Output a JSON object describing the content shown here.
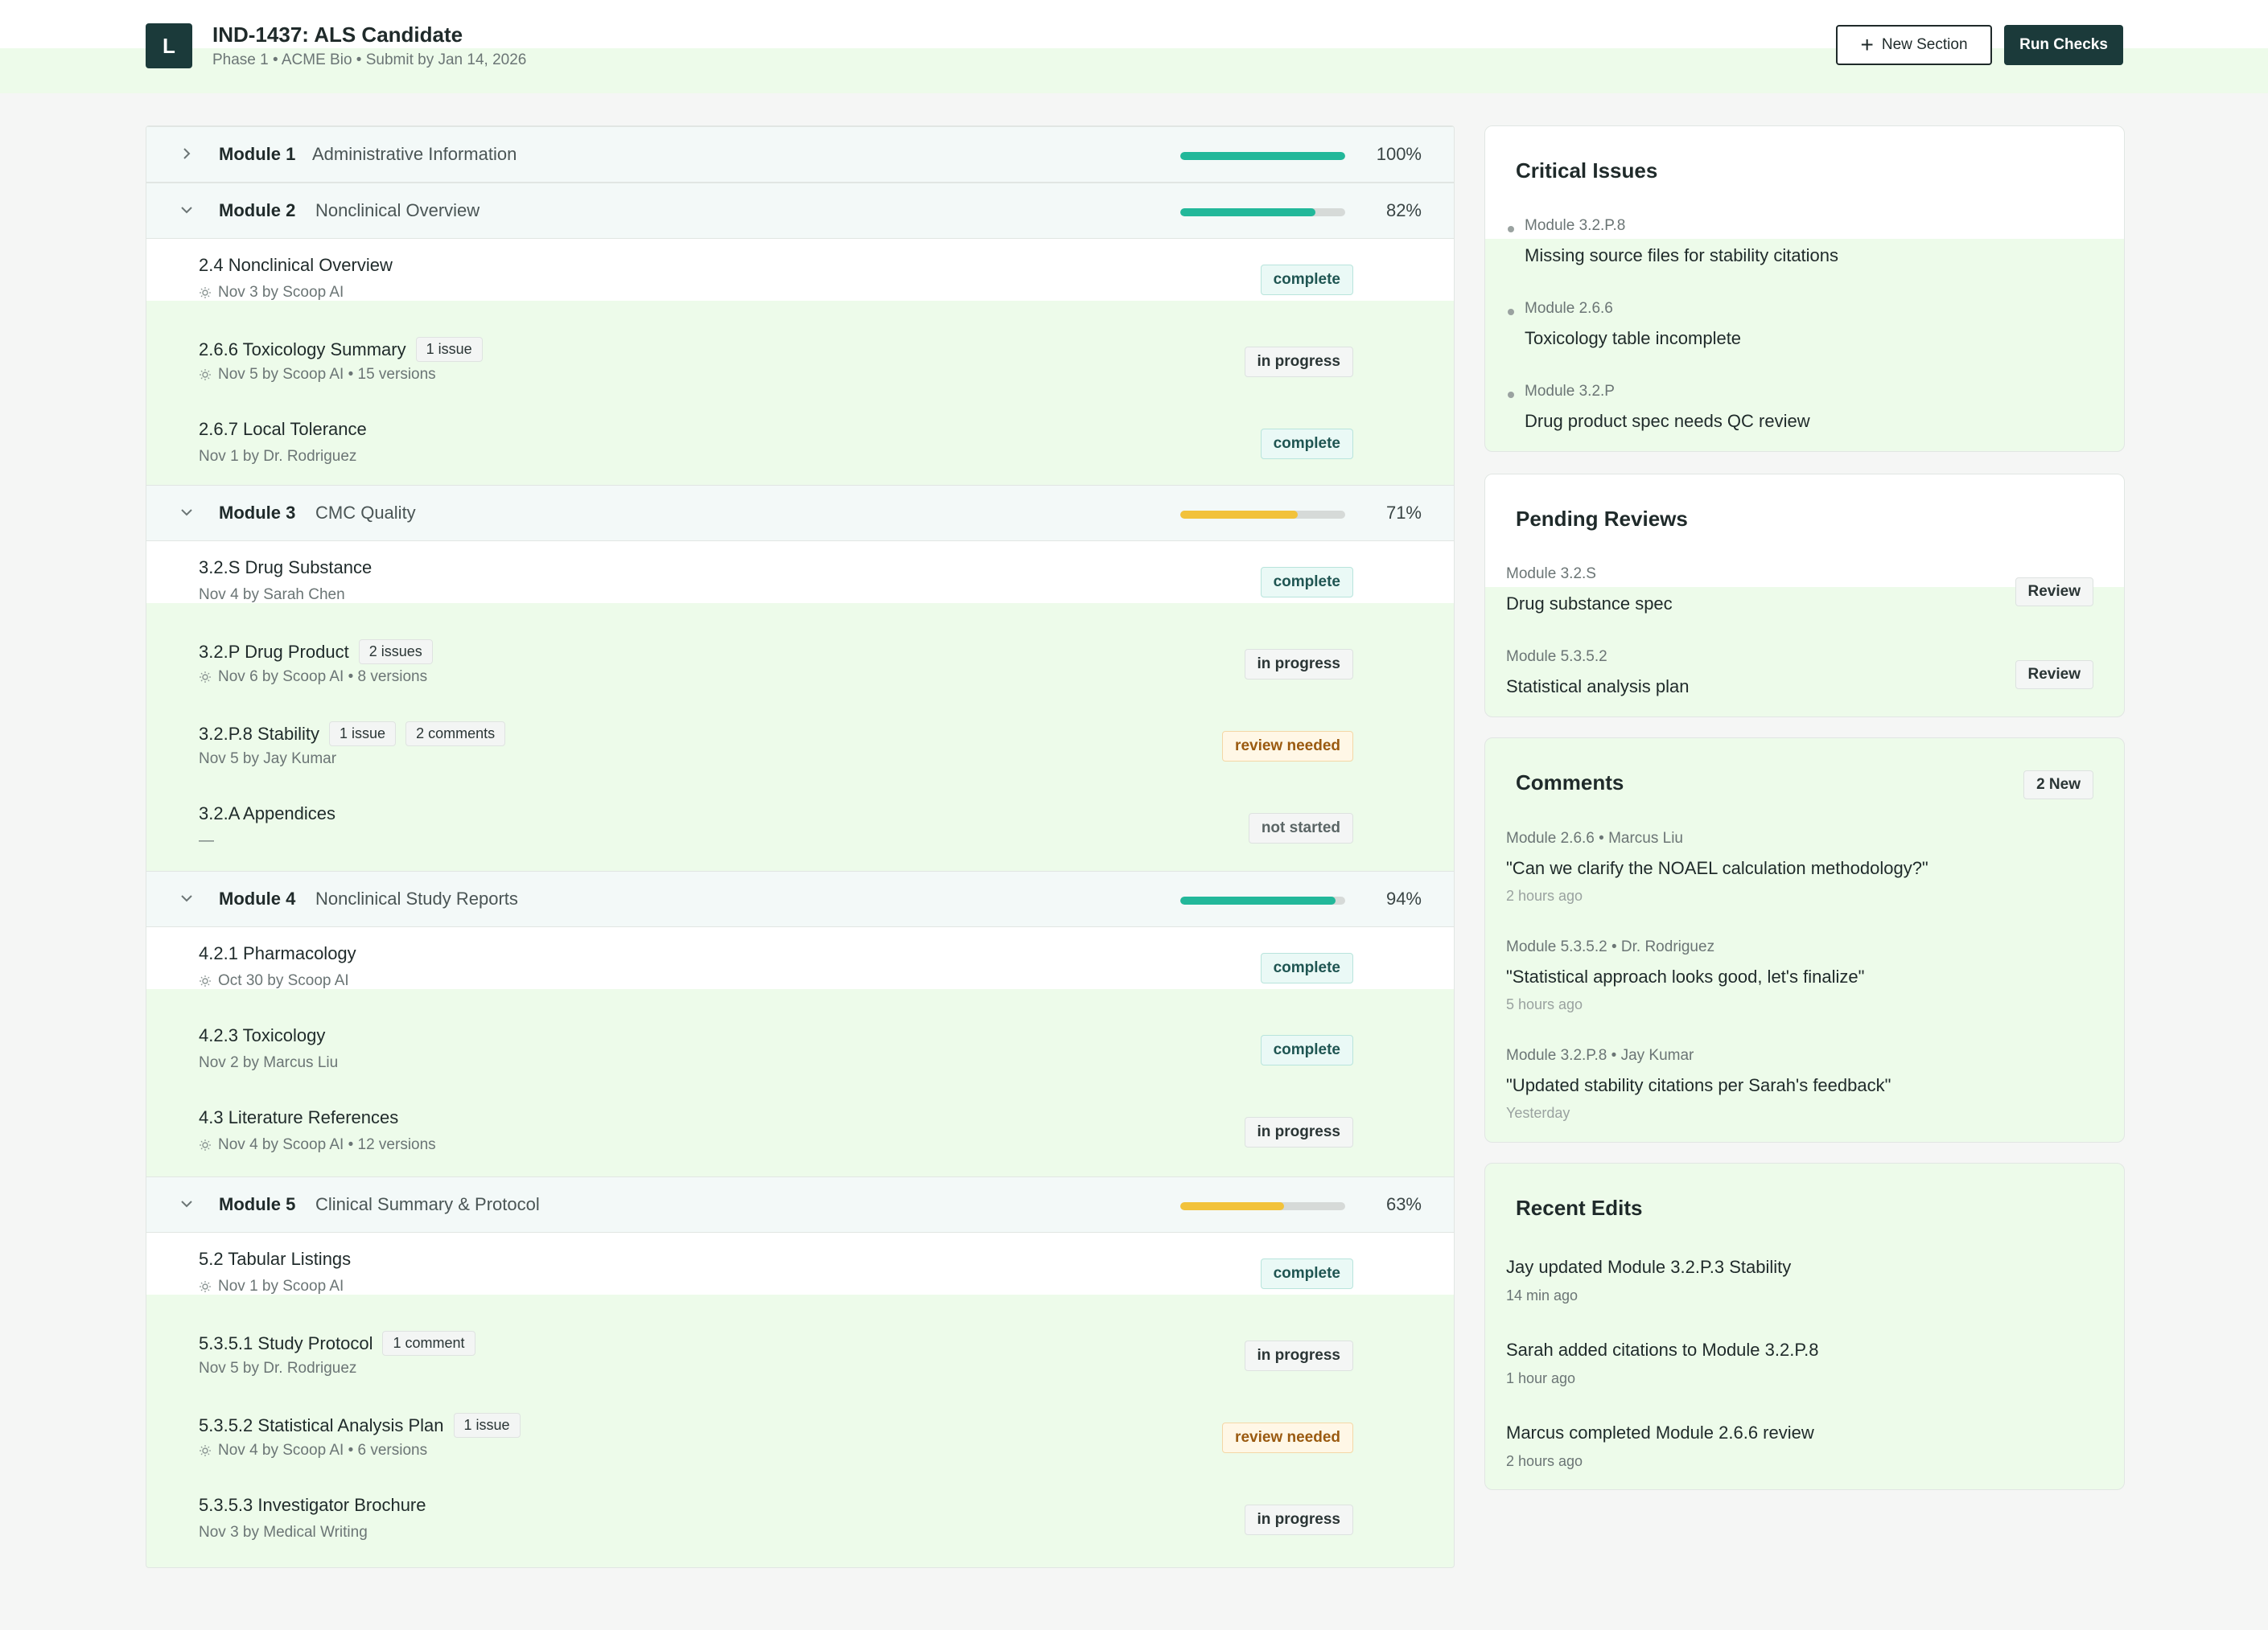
{
  "header": {
    "logo_letter": "L",
    "title": "IND-1437: ALS Candidate",
    "subtitle": "Phase 1 • ACME Bio • Submit by Jan 14, 2026",
    "new_section_label": "New Section",
    "run_checks_label": "Run Checks"
  },
  "modules": [
    {
      "name": "Module 1",
      "desc": "Administrative Information",
      "progress_pct": 100,
      "progress_label": "100%",
      "bar_color": "#22b89a",
      "expanded": false
    },
    {
      "name": "Module 2",
      "desc": "Nonclinical Overview",
      "progress_pct": 82,
      "progress_label": "82%",
      "bar_color": "#22b89a",
      "expanded": true
    },
    {
      "name": "Module 3",
      "desc": "CMC Quality",
      "progress_pct": 71,
      "progress_label": "71%",
      "bar_color": "#f2c23a",
      "expanded": true
    },
    {
      "name": "Module 4",
      "desc": "Nonclinical Study Reports",
      "progress_pct": 94,
      "progress_label": "94%",
      "bar_color": "#22b89a",
      "expanded": true
    },
    {
      "name": "Module 5",
      "desc": "Clinical Summary & Protocol",
      "progress_pct": 63,
      "progress_label": "63%",
      "bar_color": "#f2c23a",
      "expanded": true
    }
  ],
  "items": [
    {
      "title": "2.4 Nonclinical Overview",
      "meta": "Nov 3 by Scoop AI",
      "ai": true,
      "chips": [],
      "status": "complete"
    },
    {
      "title": "2.6.6 Toxicology Summary",
      "meta": "Nov 5 by Scoop AI • 15 versions",
      "ai": true,
      "chips": [
        "1 issue"
      ],
      "status": "in progress"
    },
    {
      "title": "2.6.7 Local Tolerance",
      "meta": "Nov 1 by Dr. Rodriguez",
      "ai": false,
      "chips": [],
      "status": "complete"
    },
    {
      "title": "3.2.S Drug Substance",
      "meta": "Nov 4 by Sarah Chen",
      "ai": false,
      "chips": [],
      "status": "complete"
    },
    {
      "title": "3.2.P Drug Product",
      "meta": "Nov 6 by Scoop AI • 8 versions",
      "ai": true,
      "chips": [
        "2 issues"
      ],
      "status": "in progress"
    },
    {
      "title": "3.2.P.8 Stability",
      "meta": "Nov 5 by Jay Kumar",
      "ai": false,
      "chips": [
        "1 issue",
        "2 comments"
      ],
      "status": "review needed"
    },
    {
      "title": "3.2.A Appendices",
      "meta": "—",
      "ai": false,
      "chips": [],
      "status": "not started"
    },
    {
      "title": "4.2.1 Pharmacology",
      "meta": "Oct 30 by Scoop AI",
      "ai": true,
      "chips": [],
      "status": "complete"
    },
    {
      "title": "4.2.3 Toxicology",
      "meta": "Nov 2 by Marcus Liu",
      "ai": false,
      "chips": [],
      "status": "complete"
    },
    {
      "title": "4.3 Literature References",
      "meta": "Nov 4 by Scoop AI • 12 versions",
      "ai": true,
      "chips": [],
      "status": "in progress"
    },
    {
      "title": "5.2 Tabular Listings",
      "meta": "Nov 1 by Scoop AI",
      "ai": true,
      "chips": [],
      "status": "complete"
    },
    {
      "title": "5.3.5.1 Study Protocol",
      "meta": "Nov 5 by Dr. Rodriguez",
      "ai": false,
      "chips": [
        "1 comment"
      ],
      "status": "in progress"
    },
    {
      "title": "5.3.5.2 Statistical Analysis Plan",
      "meta": "Nov 4 by Scoop AI • 6 versions",
      "ai": true,
      "chips": [
        "1 issue"
      ],
      "status": "review needed"
    },
    {
      "title": "5.3.5.3 Investigator Brochure",
      "meta": "Nov 3 by Medical Writing",
      "ai": false,
      "chips": [],
      "status": "in progress"
    }
  ],
  "critical_issues": {
    "title": "Critical Issues",
    "items": [
      {
        "module": "Module 3.2.P.8",
        "text": "Missing source files for stability citations"
      },
      {
        "module": "Module 2.6.6",
        "text": "Toxicology table incomplete"
      },
      {
        "module": "Module 3.2.P",
        "text": "Drug product spec needs QC review"
      }
    ]
  },
  "pending_reviews": {
    "title": "Pending Reviews",
    "button_label": "Review",
    "items": [
      {
        "module": "Module 3.2.S",
        "text": "Drug substance spec"
      },
      {
        "module": "Module 5.3.5.2",
        "text": "Statistical analysis plan"
      }
    ]
  },
  "comments": {
    "title": "Comments",
    "badge": "2 New",
    "items": [
      {
        "meta": "Module 2.6.6 • Marcus Liu",
        "text": "\"Can we clarify the NOAEL calculation methodology?\"",
        "time": "2 hours ago"
      },
      {
        "meta": "Module 5.3.5.2 • Dr. Rodriguez",
        "text": "\"Statistical approach looks good, let's finalize\"",
        "time": "5 hours ago"
      },
      {
        "meta": "Module 3.2.P.8 • Jay Kumar",
        "text": "\"Updated stability citations per Sarah's feedback\"",
        "time": "Yesterday"
      }
    ]
  },
  "recent_edits": {
    "title": "Recent Edits",
    "items": [
      {
        "text": "Jay updated Module 3.2.P.3 Stability",
        "time": "14 min ago"
      },
      {
        "text": "Sarah added citations to Module 3.2.P.8",
        "time": "1 hour ago"
      },
      {
        "text": "Marcus completed Module 2.6.6 review",
        "time": "2 hours ago"
      }
    ]
  },
  "colors": {
    "accent": "#1b3a3a",
    "complete_bar": "#22b89a",
    "warning_bar": "#f2c23a"
  }
}
